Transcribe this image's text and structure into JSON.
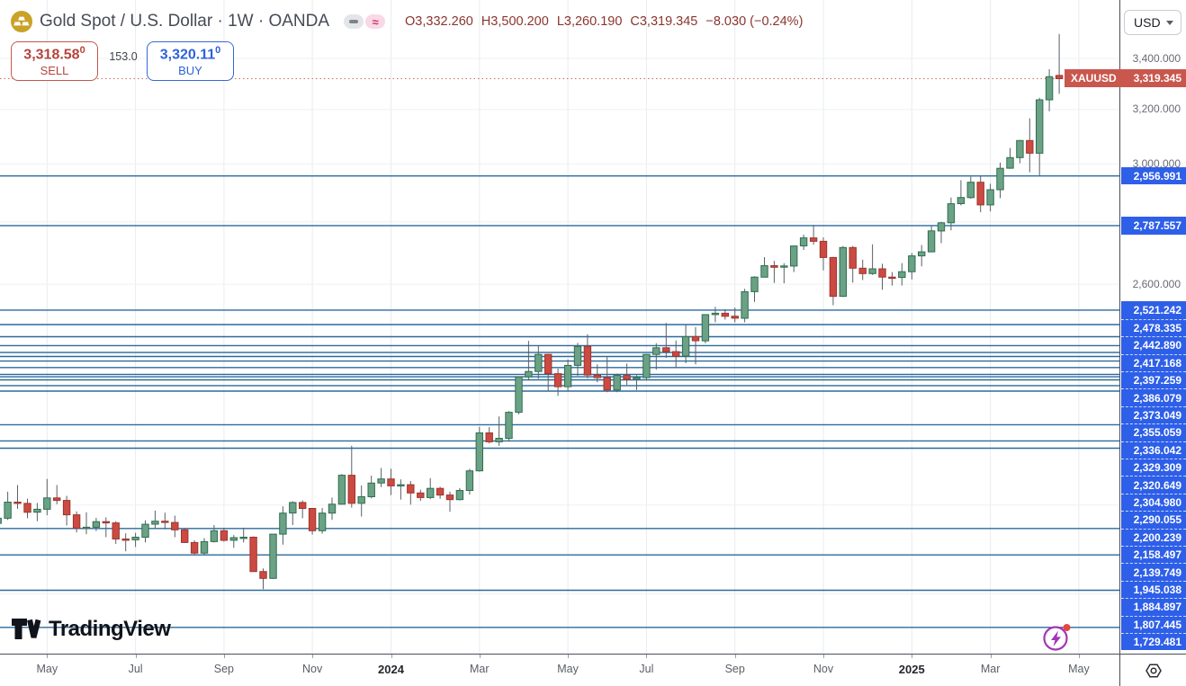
{
  "header": {
    "title": "Gold Spot / U.S. Dollar · 1W · OANDA",
    "ohlc": {
      "open": "O3,332.260",
      "high": "H3,500.200",
      "low": "L3,260.190",
      "close": "C3,319.345",
      "change": "−8.030 (−0.24%)"
    },
    "sell": {
      "price": "3,318.58",
      "sup": "0",
      "label": "SELL"
    },
    "spread": "153.0",
    "buy": {
      "price": "3,320.11",
      "sup": "0",
      "label": "BUY"
    }
  },
  "price_axis": {
    "currency": "USD",
    "ticks": [
      {
        "text": "3,400.000",
        "price": 3400
      },
      {
        "text": "3,200.000",
        "price": 3200
      },
      {
        "text": "3,000.000",
        "price": 3000
      },
      {
        "text": "2,800.000",
        "price": 2800
      },
      {
        "text": "2,600.000",
        "price": 2600
      }
    ],
    "last_price_label": {
      "symbol": "XAUUSD",
      "price": "3,319.345"
    }
  },
  "time_axis": {
    "labels": [
      {
        "text": "May",
        "week": 5,
        "bold": false
      },
      {
        "text": "Jul",
        "week": 14,
        "bold": false
      },
      {
        "text": "Sep",
        "week": 23,
        "bold": false
      },
      {
        "text": "Nov",
        "week": 32,
        "bold": false
      },
      {
        "text": "2024",
        "week": 40,
        "bold": true
      },
      {
        "text": "Mar",
        "week": 49,
        "bold": false
      },
      {
        "text": "May",
        "week": 58,
        "bold": false
      },
      {
        "text": "Jul",
        "week": 66,
        "bold": false
      },
      {
        "text": "Sep",
        "week": 75,
        "bold": false
      },
      {
        "text": "Nov",
        "week": 84,
        "bold": false
      },
      {
        "text": "2025",
        "week": 93,
        "bold": true
      },
      {
        "text": "Mar",
        "week": 101,
        "bold": false
      },
      {
        "text": "May",
        "week": 110,
        "bold": false
      }
    ]
  },
  "watermark": "TradingView",
  "chart_data": {
    "type": "candlestick",
    "symbol": "XAUUSD",
    "exchange": "OANDA",
    "interval": "1W",
    "price_scale": "log",
    "last_price": 3319.345,
    "grid_prices": [
      3400,
      3200,
      3000,
      2800,
      2600,
      2400,
      2200,
      2000,
      1800
    ],
    "levels": [
      {
        "price": 2956.991,
        "text": "2,956.991"
      },
      {
        "price": 2787.557,
        "text": "2,787.557"
      },
      {
        "price": 2521.242,
        "text": "2,521.242"
      },
      {
        "price": 2478.335,
        "text": "2,478.335"
      },
      {
        "price": 2442.89,
        "text": "2,442.890"
      },
      {
        "price": 2417.168,
        "text": "2,417.168"
      },
      {
        "price": 2397.259,
        "text": "2,397.259"
      },
      {
        "price": 2386.079,
        "text": "2,386.079"
      },
      {
        "price": 2373.049,
        "text": "2,373.049"
      },
      {
        "price": 2355.059,
        "text": "2,355.059"
      },
      {
        "price": 2336.042,
        "text": "2,336.042"
      },
      {
        "price": 2329.309,
        "text": "2,329.309"
      },
      {
        "price": 2320.649,
        "text": "2,320.649"
      },
      {
        "price": 2304.98,
        "text": "2,304.980"
      },
      {
        "price": 2290.055,
        "text": "2,290.055"
      },
      {
        "price": 2200.239,
        "text": "2,200.239"
      },
      {
        "price": 2158.497,
        "text": "2,158.497"
      },
      {
        "price": 2139.749,
        "text": "2,139.749"
      },
      {
        "price": 1945.038,
        "text": "1,945.038"
      },
      {
        "price": 1884.897,
        "text": "1,884.897"
      },
      {
        "price": 1807.445,
        "text": "1,807.445"
      },
      {
        "price": 1729.481,
        "text": "1,729.481"
      }
    ],
    "colors": {
      "up": "#6ba184",
      "up_border": "#2f6e51",
      "down": "#cb4a42",
      "down_border": "#9e352e",
      "wick": "#596066",
      "level_line": "#2b6a9d",
      "level_label_bg": "#2e5fe8",
      "last_price": "#c9574d",
      "accent_blue": "#2d63d9",
      "accent_red": "#b5443c"
    },
    "candles": [
      [
        1957,
        1987,
        1944,
        1969
      ],
      [
        1969,
        2032,
        1965,
        2007
      ],
      [
        2007,
        2048,
        1991,
        2004
      ],
      [
        2004,
        2015,
        1969,
        1983
      ],
      [
        1983,
        2005,
        1962,
        1990
      ],
      [
        1990,
        2063,
        1976,
        2017
      ],
      [
        2017,
        2048,
        2002,
        2011
      ],
      [
        2011,
        2022,
        1952,
        1977
      ],
      [
        1977,
        1985,
        1936,
        1946
      ],
      [
        1946,
        1983,
        1932,
        1948
      ],
      [
        1948,
        1970,
        1939,
        1961
      ],
      [
        1961,
        1971,
        1925,
        1958
      ],
      [
        1958,
        1962,
        1910,
        1921
      ],
      [
        1921,
        1934,
        1893,
        1919
      ],
      [
        1919,
        1935,
        1903,
        1925
      ],
      [
        1925,
        1964,
        1913,
        1955
      ],
      [
        1955,
        1987,
        1946,
        1962
      ],
      [
        1962,
        1982,
        1943,
        1959
      ],
      [
        1959,
        1975,
        1925,
        1942
      ],
      [
        1942,
        1946,
        1912,
        1913
      ],
      [
        1913,
        1918,
        1885,
        1889
      ],
      [
        1889,
        1923,
        1884,
        1915
      ],
      [
        1915,
        1953,
        1913,
        1940
      ],
      [
        1940,
        1947,
        1915,
        1918
      ],
      [
        1918,
        1930,
        1901,
        1924
      ],
      [
        1924,
        1947,
        1913,
        1925
      ],
      [
        1925,
        1927,
        1848,
        1848
      ],
      [
        1848,
        1855,
        1810,
        1833
      ],
      [
        1833,
        1932,
        1832,
        1932
      ],
      [
        1932,
        1997,
        1908,
        1981
      ],
      [
        1981,
        2009,
        1953,
        2006
      ],
      [
        2006,
        2011,
        1969,
        1992
      ],
      [
        1992,
        1993,
        1931,
        1940
      ],
      [
        1940,
        1993,
        1933,
        1981
      ],
      [
        1981,
        2018,
        1965,
        2002
      ],
      [
        2002,
        2075,
        2001,
        2072
      ],
      [
        2072,
        2146,
        1994,
        2004
      ],
      [
        2004,
        2047,
        1973,
        2020
      ],
      [
        2020,
        2071,
        2016,
        2053
      ],
      [
        2053,
        2090,
        2043,
        2063
      ],
      [
        2063,
        2088,
        2024,
        2046
      ],
      [
        2046,
        2062,
        2013,
        2049
      ],
      [
        2049,
        2058,
        2001,
        2029
      ],
      [
        2029,
        2037,
        2010,
        2018
      ],
      [
        2018,
        2065,
        2014,
        2040
      ],
      [
        2040,
        2044,
        2015,
        2024
      ],
      [
        2024,
        2032,
        1984,
        2013
      ],
      [
        2013,
        2041,
        2011,
        2035
      ],
      [
        2035,
        2088,
        2025,
        2083
      ],
      [
        2083,
        2195,
        2081,
        2179
      ],
      [
        2179,
        2194,
        2152,
        2156
      ],
      [
        2156,
        2222,
        2146,
        2165
      ],
      [
        2165,
        2236,
        2157,
        2233
      ],
      [
        2233,
        2330,
        2228,
        2329
      ],
      [
        2329,
        2431,
        2319,
        2344
      ],
      [
        2344,
        2418,
        2324,
        2392
      ],
      [
        2392,
        2393,
        2291,
        2338
      ],
      [
        2338,
        2352,
        2277,
        2302
      ],
      [
        2302,
        2378,
        2291,
        2361
      ],
      [
        2361,
        2425,
        2332,
        2415
      ],
      [
        2415,
        2450,
        2325,
        2334
      ],
      [
        2334,
        2364,
        2314,
        2327
      ],
      [
        2327,
        2387,
        2287,
        2293
      ],
      [
        2293,
        2338,
        2287,
        2333
      ],
      [
        2333,
        2366,
        2307,
        2322
      ],
      [
        2322,
        2334,
        2293,
        2327
      ],
      [
        2327,
        2393,
        2319,
        2392
      ],
      [
        2392,
        2424,
        2349,
        2411
      ],
      [
        2411,
        2483,
        2382,
        2400
      ],
      [
        2400,
        2432,
        2353,
        2387
      ],
      [
        2387,
        2477,
        2367,
        2443
      ],
      [
        2443,
        2471,
        2364,
        2431
      ],
      [
        2431,
        2509,
        2424,
        2508
      ],
      [
        2508,
        2531,
        2485,
        2512
      ],
      [
        2512,
        2524,
        2493,
        2503
      ],
      [
        2503,
        2529,
        2485,
        2497
      ],
      [
        2497,
        2586,
        2485,
        2577
      ],
      [
        2577,
        2625,
        2546,
        2622
      ],
      [
        2622,
        2685,
        2622,
        2658
      ],
      [
        2658,
        2673,
        2604,
        2653
      ],
      [
        2653,
        2666,
        2603,
        2657
      ],
      [
        2657,
        2722,
        2638,
        2721
      ],
      [
        2721,
        2758,
        2708,
        2747
      ],
      [
        2747,
        2790,
        2725,
        2736
      ],
      [
        2736,
        2749,
        2643,
        2684
      ],
      [
        2684,
        2686,
        2536,
        2563
      ],
      [
        2563,
        2721,
        2561,
        2716
      ],
      [
        2716,
        2721,
        2605,
        2650
      ],
      [
        2650,
        2677,
        2613,
        2633
      ],
      [
        2633,
        2726,
        2629,
        2648
      ],
      [
        2648,
        2664,
        2583,
        2622
      ],
      [
        2622,
        2638,
        2596,
        2621
      ],
      [
        2621,
        2666,
        2596,
        2639
      ],
      [
        2639,
        2698,
        2615,
        2689
      ],
      [
        2689,
        2724,
        2656,
        2702
      ],
      [
        2702,
        2786,
        2702,
        2770
      ],
      [
        2770,
        2800,
        2730,
        2797
      ],
      [
        2797,
        2882,
        2772,
        2861
      ],
      [
        2861,
        2942,
        2855,
        2882
      ],
      [
        2882,
        2954,
        2878,
        2935
      ],
      [
        2935,
        2956,
        2832,
        2857
      ],
      [
        2857,
        2930,
        2835,
        2909
      ],
      [
        2909,
        3004,
        2880,
        2984
      ],
      [
        2984,
        3057,
        2982,
        3022
      ],
      [
        3022,
        3086,
        3002,
        3084
      ],
      [
        3084,
        3167,
        2970,
        3038
      ],
      [
        3038,
        3245,
        2957,
        3237
      ],
      [
        3237,
        3357,
        3193,
        3327
      ],
      [
        3332,
        3500.2,
        3260.19,
        3319.345
      ]
    ]
  }
}
